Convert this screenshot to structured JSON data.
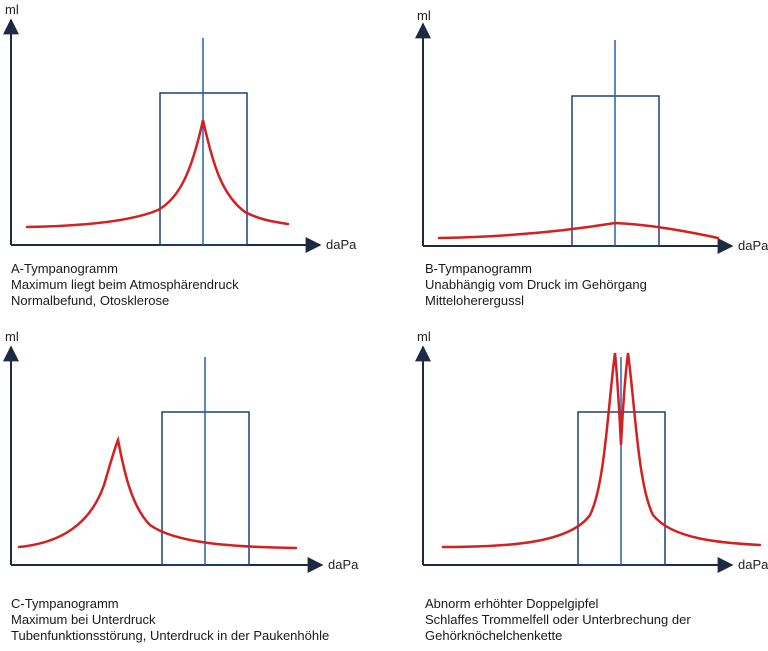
{
  "axis": {
    "y_label": "ml",
    "x_label": "daPa"
  },
  "colors": {
    "curve": "#d42020",
    "box": "#1d3f7a",
    "center_line": "#2a5db8",
    "axis": "#1e2a44"
  },
  "panels": [
    {
      "id": "a",
      "caption": [
        "A-Tympanogramm",
        "Maximum liegt beim Atmosphärendruck",
        "Normalbefund, Otosklerose"
      ]
    },
    {
      "id": "b",
      "caption": [
        "B-Tympanogramm",
        "Unabhängig vom Druck im Gehörgang",
        "Mitteloherergussl"
      ]
    },
    {
      "id": "c",
      "caption": [
        "C-Tympanogramm",
        "Maximum bei Unterdruck",
        "Tubenfunktionsstörung, Unterdruck in der Paukenhöhle"
      ]
    },
    {
      "id": "d",
      "caption": [
        "Abnorm erhöhter Doppelgipfel",
        "Schlaffes Trommelfell oder Unterbrechung der",
        "Gehörknöchelchenkette"
      ]
    }
  ]
}
